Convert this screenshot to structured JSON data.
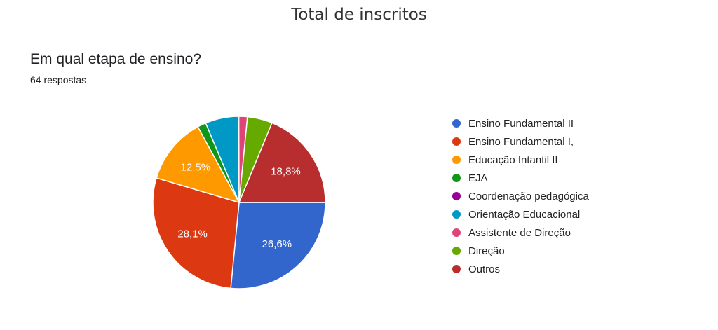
{
  "page": {
    "title": "Total de inscritos"
  },
  "question": {
    "title": "Em qual etapa de ensino?",
    "responses": "64 respostas"
  },
  "chart_data": {
    "type": "pie",
    "start_angle_deg": 0,
    "direction": "clockwise",
    "total_responses": 64,
    "slices": [
      {
        "name": "Ensino Fundamental II",
        "value": 26.6,
        "label": "26,6%",
        "color": "#3366cc"
      },
      {
        "name": "Ensino Fundamental I,",
        "value": 28.1,
        "label": "28,1%",
        "color": "#dc3912"
      },
      {
        "name": "Educação Intantil II",
        "value": 12.5,
        "label": "12,5%",
        "color": "#ff9900"
      },
      {
        "name": "EJA",
        "value": 1.6,
        "label": "",
        "color": "#109618"
      },
      {
        "name": "Coordenação pedagógica",
        "value": 0,
        "label": "",
        "color": "#990099"
      },
      {
        "name": "Orientação Educacional",
        "value": 6.3,
        "label": "",
        "color": "#0099c6"
      },
      {
        "name": "Assistente de Direção",
        "value": 1.6,
        "label": "",
        "color": "#dd4477"
      },
      {
        "name": "Direção",
        "value": 4.7,
        "label": "",
        "color": "#66aa00"
      },
      {
        "name": "Outros",
        "value": 18.8,
        "label": "18,8%",
        "color": "#b82e2e"
      }
    ]
  }
}
